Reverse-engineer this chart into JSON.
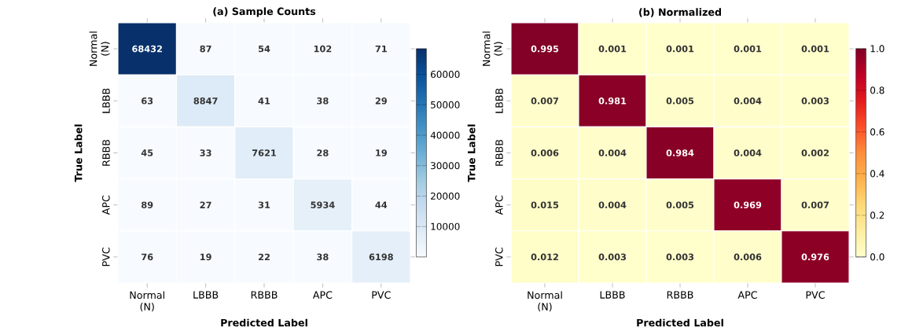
{
  "chart_data": [
    {
      "type": "heatmap",
      "title": "(a) Sample Counts",
      "xlabel": "Predicted Label",
      "ylabel": "True Label",
      "categories": [
        "Normal (N)",
        "LBBB",
        "RBBB",
        "APC",
        "PVC"
      ],
      "y_categories": [
        "Normal (N)",
        "LBBB",
        "RBBB",
        "APC",
        "PVC"
      ],
      "cells": [
        [
          68432,
          87,
          54,
          102,
          71
        ],
        [
          63,
          8847,
          41,
          38,
          29
        ],
        [
          45,
          33,
          7621,
          28,
          19
        ],
        [
          89,
          27,
          31,
          5934,
          44
        ],
        [
          76,
          19,
          22,
          38,
          6198
        ]
      ],
      "data_labels": true,
      "clim": [
        19,
        68432
      ],
      "cticks": [
        10000,
        20000,
        30000,
        40000,
        50000,
        60000
      ]
    },
    {
      "type": "heatmap",
      "title": "(b) Normalized",
      "xlabel": "Predicted Label",
      "ylabel": "True Label",
      "categories": [
        "Normal (N)",
        "LBBB",
        "RBBB",
        "APC",
        "PVC"
      ],
      "y_categories": [
        "Normal (N)",
        "LBBB",
        "RBBB",
        "APC",
        "PVC"
      ],
      "cells": [
        [
          0.995,
          0.001,
          0.001,
          0.001,
          0.001
        ],
        [
          0.007,
          0.981,
          0.005,
          0.004,
          0.003
        ],
        [
          0.006,
          0.004,
          0.984,
          0.004,
          0.002
        ],
        [
          0.015,
          0.004,
          0.005,
          0.969,
          0.007
        ],
        [
          0.012,
          0.003,
          0.003,
          0.006,
          0.976
        ]
      ],
      "data_labels": true,
      "clim": [
        0,
        1
      ],
      "cticks": [
        {
          "value": 0,
          "label": "0.0"
        },
        0.2,
        0.4,
        0.6,
        0.8,
        {
          "value": 1,
          "label": "1.0"
        }
      ]
    }
  ]
}
